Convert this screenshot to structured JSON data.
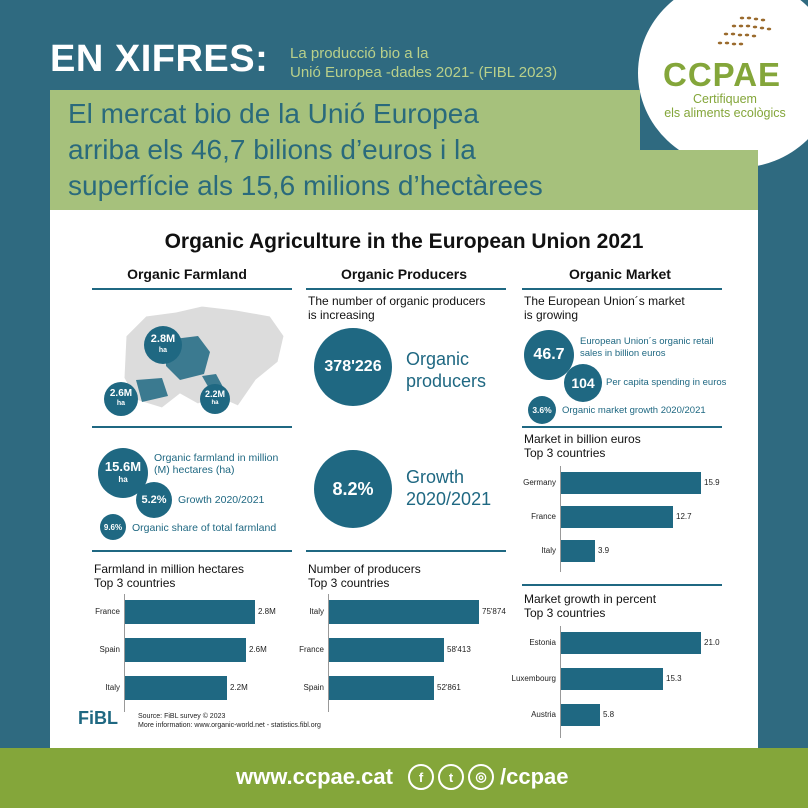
{
  "header": {
    "title": "EN XIFRES:",
    "subtitle_line1": "La producció bio a la",
    "subtitle_line2": "Unió Europea -dades 2021- (FIBL 2023)"
  },
  "logo": {
    "name": "CCPAE",
    "tag_line1": "Certifiquem",
    "tag_line2": "els aliments ecològics",
    "icon": "wheat-dots-icon"
  },
  "headline": {
    "line1": "El mercat bio de la Unió Europea",
    "line2": "arriba els 46,7 bilions d’euros i la",
    "line3": "superfície als 15,6 milions d’hectàrees"
  },
  "infographic": {
    "title": "Organic Agriculture in the European Union 2021",
    "farmland": {
      "title": "Organic Farmland",
      "map_labels": [
        {
          "value": "2.8M",
          "unit": "ha"
        },
        {
          "value": "2.6M",
          "unit": "ha"
        },
        {
          "value": "2.2M",
          "unit": "ha"
        }
      ],
      "total_value": "15.6M",
      "total_unit": "ha",
      "total_text": "Organic farmland in million (M) hectares (ha)",
      "growth_value": "5.2%",
      "growth_text": "Growth 2020/2021",
      "share_value": "9.6%",
      "share_text": "Organic share of total farmland",
      "chart_title_line1": "Farmland in million hectares",
      "chart_title_line2": "Top 3 countries"
    },
    "producers": {
      "title": "Organic Producers",
      "intro_line1": "The number of organic producers",
      "intro_line2": "is increasing",
      "count_value": "378'226",
      "count_text_line1": "Organic",
      "count_text_line2": "producers",
      "growth_value": "8.2%",
      "growth_text_line1": "Growth",
      "growth_text_line2": "2020/2021",
      "chart_title_line1": "Number of producers",
      "chart_title_line2": "Top 3 countries"
    },
    "market": {
      "title": "Organic Market",
      "intro_line1": "The European Union´s market",
      "intro_line2": "is growing",
      "retail_value": "46.7",
      "retail_text_line1": "European Union´s organic retail",
      "retail_text_line2": "sales in billion euros",
      "percapita_value": "104",
      "percapita_text": "Per capita spending in euros",
      "growth_value": "3.6%",
      "growth_text": "Organic market growth 2020/2021",
      "chart1_title_line1": "Market in billion euros",
      "chart1_title_line2": "Top 3 countries",
      "chart2_title_line1": "Market growth in percent",
      "chart2_title_line2": "Top 3 countries"
    },
    "source_line1": "Source: FiBL survey © 2023",
    "source_line2": "More information: www.organic-world.net - statistics.fibl.org",
    "fibl_logo": "FiBL"
  },
  "chart_data": [
    {
      "type": "bar",
      "title": "Farmland in million hectares",
      "categories": [
        "France",
        "Spain",
        "Italy"
      ],
      "values": [
        2.8,
        2.6,
        2.2
      ],
      "value_labels": [
        "2.8M",
        "2.6M",
        "2.2M"
      ],
      "xlim": [
        0,
        2.8
      ]
    },
    {
      "type": "bar",
      "title": "Number of producers",
      "categories": [
        "Italy",
        "France",
        "Spain"
      ],
      "values": [
        75874,
        58413,
        52861
      ],
      "value_labels": [
        "75'874",
        "58'413",
        "52'861"
      ],
      "xlim": [
        0,
        75874
      ]
    },
    {
      "type": "bar",
      "title": "Market in billion euros",
      "categories": [
        "Germany",
        "France",
        "Italy"
      ],
      "values": [
        15.9,
        12.7,
        3.9
      ],
      "value_labels": [
        "15.9",
        "12.7",
        "3.9"
      ],
      "xlim": [
        0,
        15.9
      ]
    },
    {
      "type": "bar",
      "title": "Market growth in percent",
      "categories": [
        "Estonia",
        "Luxembourg",
        "Austria"
      ],
      "values": [
        21.0,
        15.3,
        5.8
      ],
      "value_labels": [
        "21.0",
        "15.3",
        "5.8"
      ],
      "xlim": [
        0,
        21.0
      ]
    }
  ],
  "footer": {
    "url": "www.ccpae.cat",
    "handle": "/ccpae",
    "social": [
      {
        "icon": "facebook-icon",
        "glyph": "f"
      },
      {
        "icon": "twitter-icon",
        "glyph": "t"
      },
      {
        "icon": "instagram-icon",
        "glyph": "◎"
      }
    ]
  }
}
